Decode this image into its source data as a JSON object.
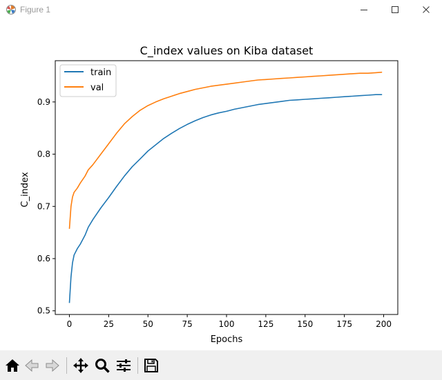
{
  "window": {
    "title": "Figure 1",
    "icons": {
      "app": "matplotlib-icon",
      "minimize": "minimize-icon",
      "maximize": "maximize-icon",
      "close": "close-icon"
    }
  },
  "toolbar": {
    "buttons": [
      {
        "name": "home-button",
        "icon": "home-icon",
        "enabled": true
      },
      {
        "name": "back-button",
        "icon": "arrow-left-icon",
        "enabled": false
      },
      {
        "name": "forward-button",
        "icon": "arrow-right-icon",
        "enabled": false
      },
      {
        "name": "pan-button",
        "icon": "move-icon",
        "enabled": true
      },
      {
        "name": "zoom-button",
        "icon": "magnifier-icon",
        "enabled": true
      },
      {
        "name": "configure-subplots-button",
        "icon": "sliders-icon",
        "enabled": true
      },
      {
        "name": "save-button",
        "icon": "floppy-disk-icon",
        "enabled": true
      }
    ]
  },
  "chart_data": {
    "type": "line",
    "title": "C_index values on Kiba dataset",
    "xlabel": "Epochs",
    "ylabel": "C_index",
    "xlim": [
      -9,
      209
    ],
    "ylim": [
      0.493,
      0.979
    ],
    "xticks": [
      0,
      25,
      50,
      75,
      100,
      125,
      150,
      175,
      200
    ],
    "yticks": [
      0.5,
      0.6,
      0.7,
      0.8,
      0.9
    ],
    "grid": false,
    "legend_placement": "upper-left",
    "series": [
      {
        "name": "train",
        "color": "#1f77b4",
        "x": [
          0,
          1,
          2,
          3,
          5,
          7,
          10,
          12,
          15,
          20,
          25,
          30,
          35,
          40,
          45,
          50,
          55,
          60,
          65,
          70,
          75,
          80,
          85,
          90,
          95,
          100,
          105,
          110,
          115,
          120,
          125,
          130,
          135,
          140,
          145,
          150,
          155,
          160,
          165,
          170,
          175,
          180,
          185,
          190,
          195,
          199
        ],
        "y": [
          0.515,
          0.565,
          0.592,
          0.607,
          0.619,
          0.628,
          0.645,
          0.66,
          0.675,
          0.697,
          0.717,
          0.738,
          0.758,
          0.776,
          0.791,
          0.806,
          0.818,
          0.83,
          0.84,
          0.849,
          0.857,
          0.864,
          0.87,
          0.875,
          0.879,
          0.882,
          0.886,
          0.889,
          0.892,
          0.895,
          0.897,
          0.899,
          0.901,
          0.903,
          0.904,
          0.905,
          0.906,
          0.907,
          0.908,
          0.909,
          0.91,
          0.911,
          0.912,
          0.913,
          0.914,
          0.914
        ]
      },
      {
        "name": "val",
        "color": "#ff7f0e",
        "x": [
          0,
          1,
          2,
          3,
          5,
          7,
          10,
          12,
          15,
          20,
          25,
          30,
          35,
          40,
          45,
          50,
          55,
          60,
          65,
          70,
          75,
          80,
          85,
          90,
          95,
          100,
          105,
          110,
          115,
          120,
          125,
          130,
          135,
          140,
          145,
          150,
          155,
          160,
          165,
          170,
          175,
          180,
          185,
          190,
          195,
          199
        ],
        "y": [
          0.657,
          0.7,
          0.718,
          0.727,
          0.735,
          0.745,
          0.758,
          0.77,
          0.78,
          0.8,
          0.82,
          0.84,
          0.858,
          0.872,
          0.884,
          0.893,
          0.9,
          0.906,
          0.911,
          0.916,
          0.92,
          0.924,
          0.927,
          0.93,
          0.932,
          0.934,
          0.936,
          0.938,
          0.94,
          0.942,
          0.943,
          0.944,
          0.945,
          0.946,
          0.947,
          0.948,
          0.949,
          0.95,
          0.951,
          0.952,
          0.953,
          0.954,
          0.955,
          0.955,
          0.956,
          0.957
        ]
      }
    ]
  }
}
